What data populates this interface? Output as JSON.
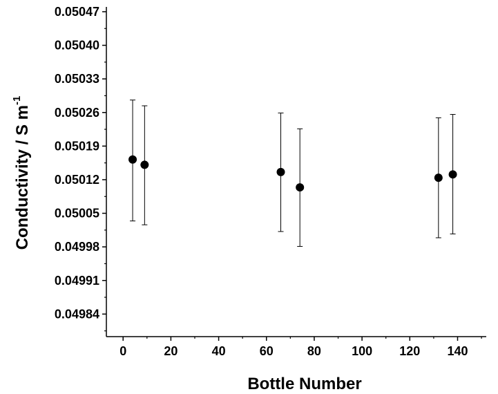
{
  "chart_data": {
    "type": "scatter",
    "title": "",
    "xlabel": "Bottle Number",
    "ylabel": "Conductivity / S m",
    "ylabel_superscript": "-1",
    "xlim": [
      -7,
      152
    ],
    "ylim": [
      0.049793,
      0.05048
    ],
    "x_ticks": [
      0,
      20,
      40,
      60,
      80,
      100,
      120,
      140
    ],
    "y_ticks": [
      0.04984,
      0.04991,
      0.04998,
      0.05005,
      0.05012,
      0.05019,
      0.05026,
      0.05033,
      0.0504,
      0.05047
    ],
    "x_tick_labels": [
      "0",
      "20",
      "40",
      "60",
      "80",
      "100",
      "120",
      "140"
    ],
    "y_tick_labels": [
      "0.04984",
      "0.04991",
      "0.04998",
      "0.05005",
      "0.05012",
      "0.05019",
      "0.05026",
      "0.05033",
      "0.05040",
      "0.05047"
    ],
    "grid": false,
    "marker_color": "#000000",
    "points": [
      {
        "x": 4,
        "y": 0.050162,
        "err_low": 0.050034,
        "err_high": 0.050286
      },
      {
        "x": 9,
        "y": 0.050151,
        "err_low": 0.050026,
        "err_high": 0.050274
      },
      {
        "x": 66,
        "y": 0.050136,
        "err_low": 0.050012,
        "err_high": 0.050259
      },
      {
        "x": 74,
        "y": 0.050104,
        "err_low": 0.049981,
        "err_high": 0.050226
      },
      {
        "x": 132,
        "y": 0.050124,
        "err_low": 0.049999,
        "err_high": 0.050249
      },
      {
        "x": 138,
        "y": 0.050131,
        "err_low": 0.050007,
        "err_high": 0.050256
      }
    ]
  }
}
